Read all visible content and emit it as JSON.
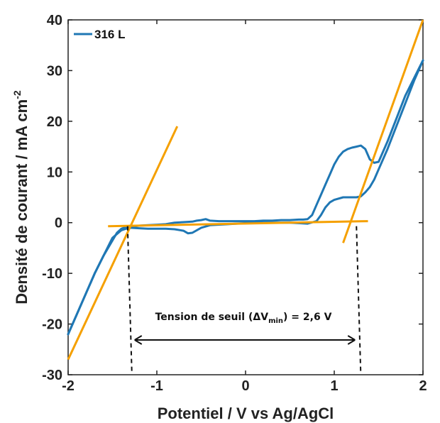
{
  "chart_data": {
    "type": "line",
    "xlabel": "Potentiel / V vs Ag/AgCl",
    "ylabel_main": "Densité de courant / mA cm",
    "ylabel_sup": "-2",
    "xlim": [
      -2,
      2
    ],
    "ylim": [
      -30,
      40
    ],
    "xticks": [
      -2,
      -1,
      0,
      1,
      2
    ],
    "yticks": [
      -30,
      -20,
      -10,
      0,
      10,
      20,
      30,
      40
    ],
    "xtick_labels": [
      "-2",
      "-1",
      "0",
      "1",
      "2"
    ],
    "ytick_labels": [
      "-30",
      "-20",
      "-10",
      "0",
      "10",
      "20",
      "30",
      "40"
    ],
    "grid": false,
    "legend_position": "top-left",
    "series": [
      {
        "name": "316 L",
        "color": "#1f77b4",
        "x": [
          -2.0,
          -1.9,
          -1.8,
          -1.7,
          -1.6,
          -1.5,
          -1.45,
          -1.4,
          -1.35,
          -1.3,
          -1.25,
          -1.2,
          -1.1,
          -1.0,
          -0.9,
          -0.8,
          -0.7,
          -0.6,
          -0.55,
          -0.5,
          -0.45,
          -0.4,
          -0.3,
          -0.2,
          -0.1,
          0.0,
          0.1,
          0.2,
          0.3,
          0.4,
          0.5,
          0.6,
          0.65,
          0.7,
          0.75,
          0.8,
          0.85,
          0.9,
          0.95,
          1.0,
          1.05,
          1.1,
          1.15,
          1.2,
          1.25,
          1.3,
          1.35,
          1.4,
          1.45,
          1.5,
          1.6,
          1.7,
          1.8,
          1.9,
          2.0
        ],
        "y": [
          -22,
          -18,
          -14,
          -10,
          -6.5,
          -3.5,
          -2.0,
          -1.2,
          -0.9,
          -0.8,
          -0.7,
          -0.6,
          -0.5,
          -0.4,
          -0.3,
          0.0,
          0.1,
          0.2,
          0.4,
          0.5,
          0.7,
          0.4,
          0.3,
          0.3,
          0.3,
          0.3,
          0.3,
          0.4,
          0.4,
          0.5,
          0.5,
          0.6,
          0.6,
          0.7,
          1.5,
          3.5,
          5.5,
          7.5,
          9.5,
          11.5,
          13.0,
          14.0,
          14.5,
          14.8,
          15.0,
          15.2,
          14.5,
          12.5,
          11.8,
          12.0,
          16.0,
          20.5,
          25.0,
          28.5,
          32.0
        ]
      },
      {
        "name": "",
        "color": "#1f77b4",
        "x": [
          2.0,
          1.9,
          1.8,
          1.7,
          1.6,
          1.5,
          1.45,
          1.4,
          1.35,
          1.3,
          1.25,
          1.2,
          1.1,
          1.0,
          0.95,
          0.9,
          0.85,
          0.8,
          0.7,
          0.6,
          0.5,
          0.4,
          0.3,
          0.2,
          0.0,
          -0.2,
          -0.4,
          -0.5,
          -0.6,
          -0.65,
          -0.7,
          -0.8,
          -0.9,
          -1.0,
          -1.1,
          -1.2,
          -1.3,
          -1.35,
          -1.4,
          -1.5,
          -1.6,
          -1.7,
          -1.8,
          -1.9,
          -2.0
        ],
        "y": [
          32.0,
          28.0,
          23.5,
          19.0,
          14.5,
          10.5,
          8.5,
          7.0,
          6.0,
          5.2,
          5.0,
          5.0,
          5.0,
          4.5,
          4.0,
          3.0,
          1.5,
          0.3,
          -0.2,
          -0.1,
          0.0,
          0.0,
          0.0,
          0.0,
          -0.1,
          -0.3,
          -0.5,
          -1.0,
          -2.0,
          -2.1,
          -1.6,
          -1.3,
          -1.2,
          -1.2,
          -1.2,
          -1.1,
          -1.0,
          -1.2,
          -1.5,
          -3.0,
          -6.5,
          -10.0,
          -14.0,
          -18.0,
          -22.0
        ]
      }
    ],
    "tangent_lines": [
      {
        "color": "#f5a000",
        "x1": -2.0,
        "y1": -27.0,
        "x2": -0.77,
        "y2": 19.0
      },
      {
        "color": "#f5a000",
        "x1": -1.55,
        "y1": -0.7,
        "x2": 1.38,
        "y2": 0.3
      },
      {
        "color": "#f5a000",
        "x1": 1.1,
        "y1": -4.0,
        "x2": 2.0,
        "y2": 40.0
      }
    ],
    "threshold": {
      "x_left": -1.33,
      "x_right": 1.25,
      "label_prefix": "Tension de seuil (",
      "label_delta": "ΔV",
      "label_sub": "min",
      "label_suffix": ") = 2,6 V"
    },
    "legend": {
      "label": "316 L"
    }
  }
}
